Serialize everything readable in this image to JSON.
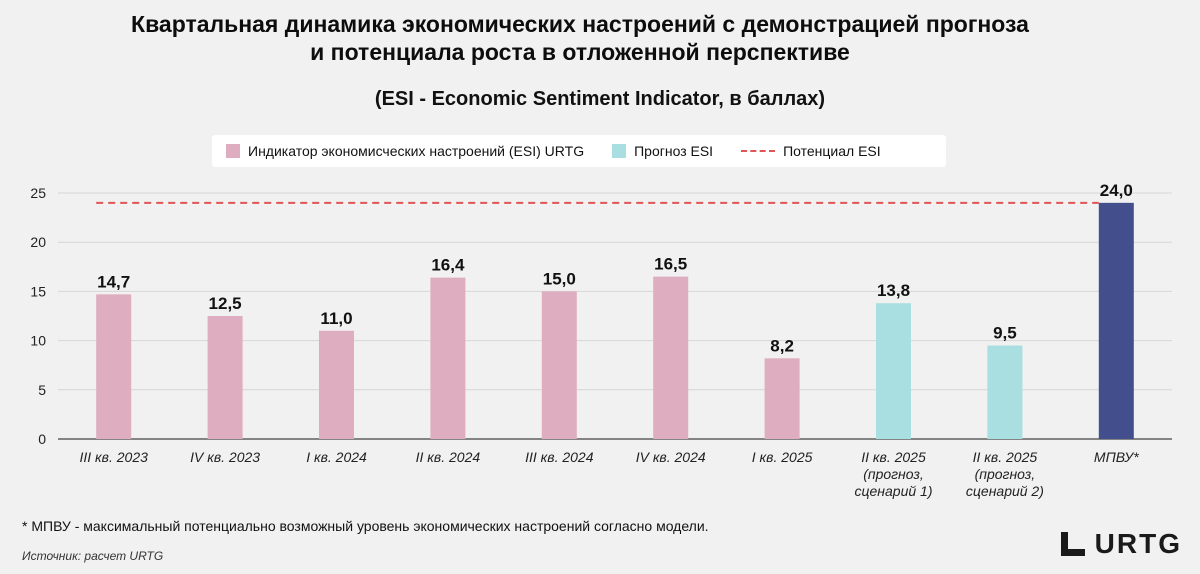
{
  "chart_data": {
    "type": "bar",
    "title_line1": "Квартальная динамика экономических настроений с демонстрацией прогноза",
    "title_line2": "и потенциала роста в отложенной перспективе",
    "subtitle": "(ESI - Economic Sentiment Indicator, в баллах)",
    "categories": [
      [
        "III кв. 2023"
      ],
      [
        "IV кв. 2023"
      ],
      [
        "I кв. 2024"
      ],
      [
        "II кв. 2024"
      ],
      [
        "III кв. 2024"
      ],
      [
        "IV кв. 2024"
      ],
      [
        "I кв. 2025"
      ],
      [
        "II кв. 2025",
        "(прогноз,",
        "сценарий 1)"
      ],
      [
        "II кв. 2025",
        "(прогноз,",
        "сценарий 2)"
      ],
      [
        "МПВУ*"
      ]
    ],
    "values": [
      14.7,
      12.5,
      11.0,
      16.4,
      15.0,
      16.5,
      8.2,
      13.8,
      9.5,
      24.0
    ],
    "value_labels": [
      "14,7",
      "12,5",
      "11,0",
      "16,4",
      "15,0",
      "16,5",
      "8,2",
      "13,8",
      "9,5",
      "24,0"
    ],
    "series_type": [
      "esi",
      "esi",
      "esi",
      "esi",
      "esi",
      "esi",
      "esi",
      "forecast",
      "forecast",
      "potential"
    ],
    "potential_line": 24.0,
    "ylim": [
      0,
      25
    ],
    "yticks": [
      0,
      5,
      10,
      15,
      20,
      25
    ],
    "grid": true,
    "legend_position": "top",
    "colors": {
      "esi": "#dfadc0",
      "forecast": "#a9dfe0",
      "potential": "#434f8c",
      "potential_line": "#e05555"
    }
  },
  "legend": {
    "esi_label": "Индикатор экономисческих настроений (ESI) URTG",
    "forecast_label": "Прогноз ESI",
    "potential_label": "Потенциал ESI"
  },
  "footnote": "* МПВУ - максимальный потенциально возможный уровень экономических настроений согласно модели.",
  "source": "Источник: расчет URTG",
  "logo": "URTG"
}
